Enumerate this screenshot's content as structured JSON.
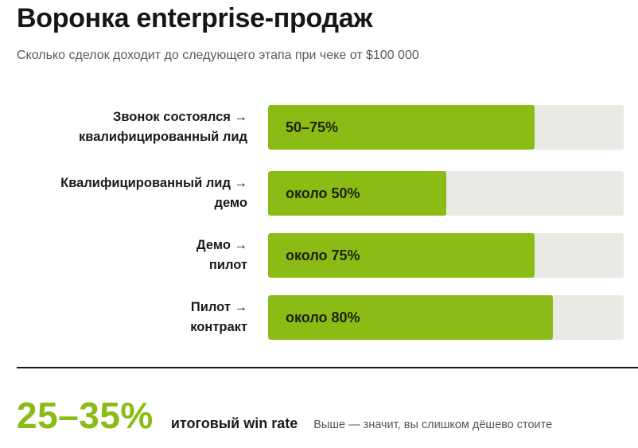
{
  "header": {
    "title": "Воронка enterprise-продаж",
    "subtitle": "Сколько сделок доходит до следующего этапа при чеке от $100 000"
  },
  "chart_data": {
    "type": "bar",
    "orientation": "horizontal",
    "xlim": [
      0,
      100
    ],
    "unit": "%",
    "categories": [
      {
        "line1": "Звонок состоялся →",
        "line2": "квалифицированный лид"
      },
      {
        "line1": "Квалифицированный лид →",
        "line2": "демо"
      },
      {
        "line1": "Демо →",
        "line2": "пилот"
      },
      {
        "line1": "Пилот →",
        "line2": "контракт"
      }
    ],
    "values": [
      75,
      50,
      75,
      80
    ],
    "data_labels": [
      "50–75%",
      "около 50%",
      "около 75%",
      "около 80%"
    ],
    "grid": false,
    "legend": "none"
  },
  "summary": {
    "value": "25–35%",
    "label": "итоговый win rate",
    "note": "Выше — значит, вы слишком дёшево стоите"
  },
  "colors": {
    "fill": "#8bbc16",
    "track": "#ebe9e3",
    "accent_text": "#8bbc16",
    "divider": "#1a1a1a"
  }
}
